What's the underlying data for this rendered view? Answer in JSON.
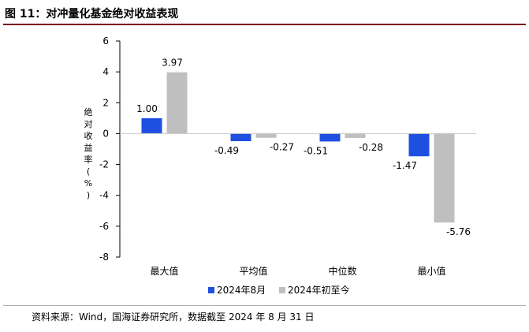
{
  "figure": {
    "title": "图 11：对冲量化基金绝对收益表现",
    "source": "资料来源：Wind，国海证券研究所，数据截至 2024 年 8 月 31 日"
  },
  "chart_data": {
    "type": "bar",
    "title": "",
    "xlabel": "",
    "ylabel": "绝对收益率(%)",
    "categories": [
      "最大值",
      "平均值",
      "中位数",
      "最小值"
    ],
    "series": [
      {
        "name": "2024年8月",
        "values": [
          1.0,
          -0.49,
          -0.51,
          -1.47
        ],
        "color": "#1f4fe0"
      },
      {
        "name": "2024年初至今",
        "values": [
          3.97,
          -0.27,
          -0.28,
          -5.76
        ],
        "color": "#bfbfbf"
      }
    ],
    "data_labels": [
      [
        "1.00",
        "-0.49",
        "-0.51",
        "-1.47"
      ],
      [
        "3.97",
        "-0.27",
        "-0.28",
        "-5.76"
      ]
    ],
    "ylim": [
      -8,
      6
    ],
    "yticks": [
      "6",
      "4",
      "2",
      "0",
      "-2",
      "-4",
      "-6",
      "-8"
    ],
    "grid": false,
    "legend": "bottom-center"
  }
}
